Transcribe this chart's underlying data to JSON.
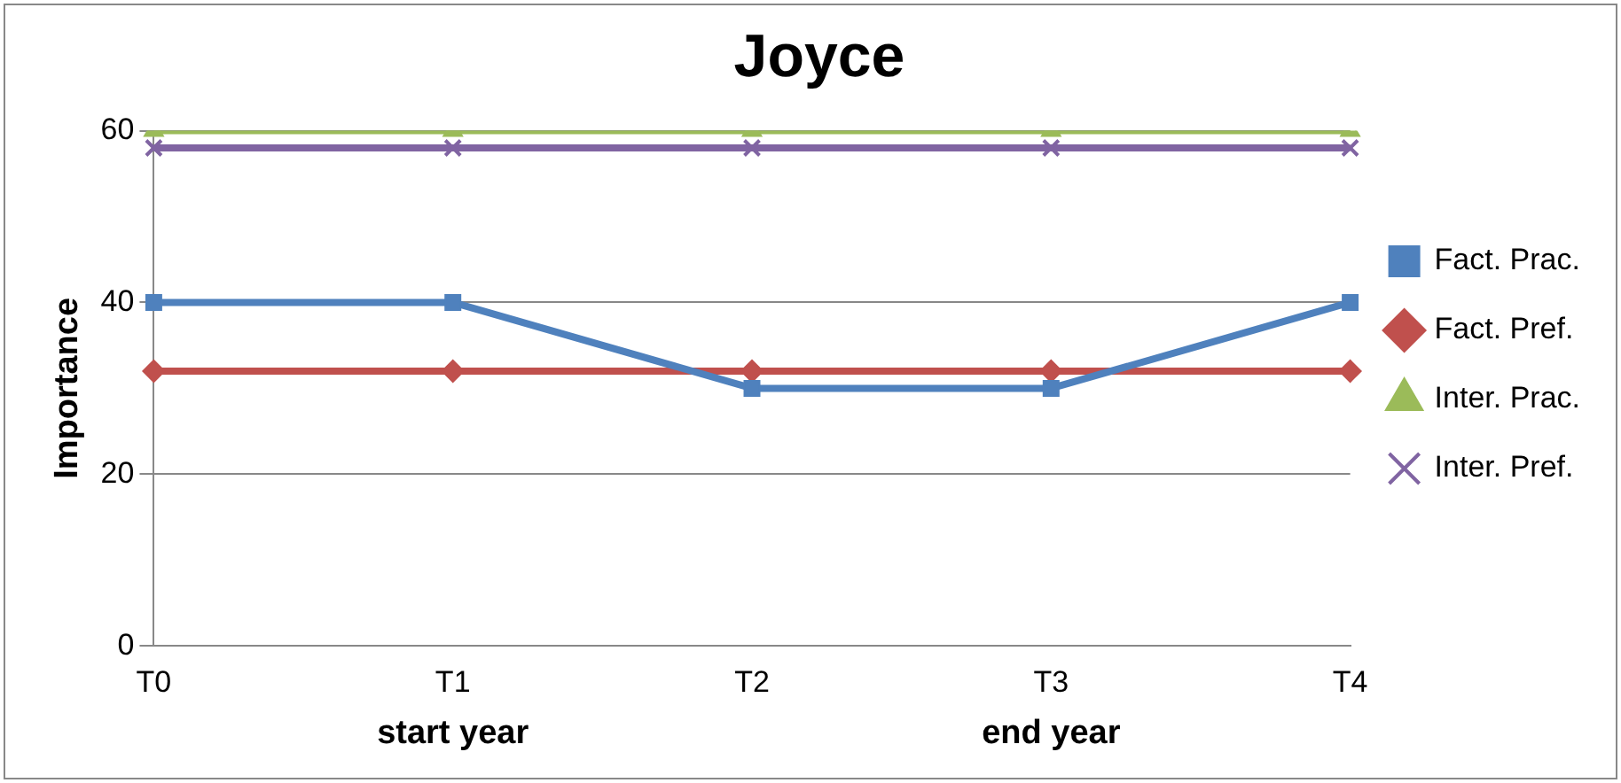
{
  "chart_data": {
    "type": "line",
    "title": "Joyce",
    "ylabel": "Importance",
    "categories": [
      "T0",
      "T1",
      "T2",
      "T3",
      "T4"
    ],
    "series": [
      {
        "name": "Fact. Prac.",
        "color": "#4f81bd",
        "marker": "square",
        "values": [
          40,
          40,
          30,
          30,
          40
        ]
      },
      {
        "name": "Fact. Pref.",
        "color": "#c0504d",
        "marker": "diamond",
        "values": [
          32,
          32,
          32,
          32,
          32
        ]
      },
      {
        "name": "Inter. Prac.",
        "color": "#9bbb59",
        "marker": "triangle",
        "values": [
          60,
          60,
          60,
          60,
          60
        ]
      },
      {
        "name": "Inter. Pref.",
        "color": "#8064a2",
        "marker": "cross",
        "values": [
          58,
          58,
          58,
          58,
          58
        ]
      }
    ],
    "annotations": [
      "start year",
      "end year"
    ],
    "ylim": [
      0,
      60
    ],
    "yticks": [
      0,
      20,
      40,
      60
    ],
    "grid": "y",
    "legend": "right"
  }
}
